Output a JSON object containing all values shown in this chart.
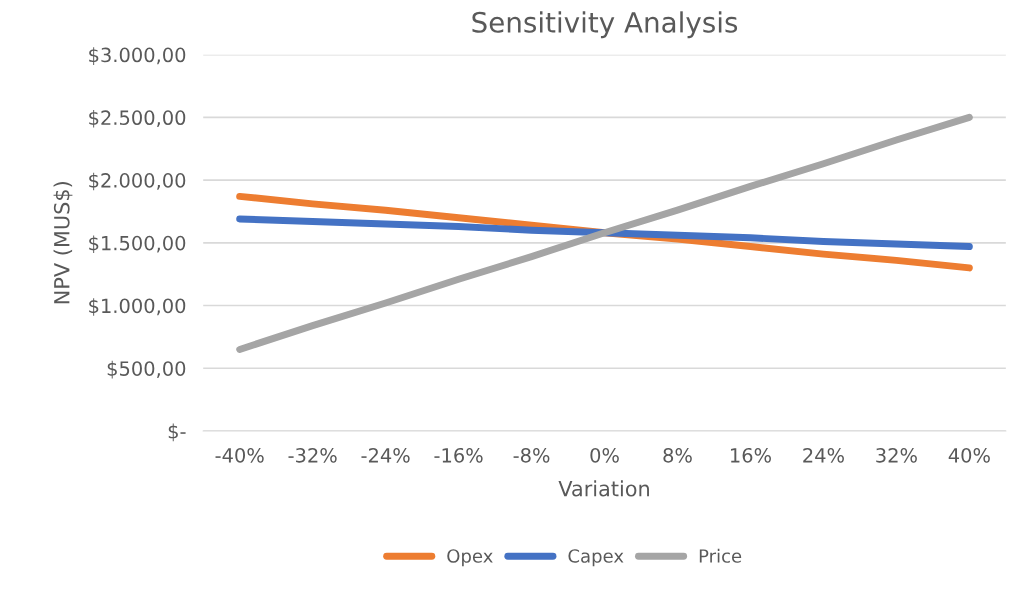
{
  "chart_data": {
    "type": "line",
    "title": "Sensitivity Analysis",
    "xlabel": "Variation",
    "ylabel": "NPV (MUS$)",
    "categories": [
      "-40%",
      "-32%",
      "-24%",
      "-16%",
      "-8%",
      "0%",
      "8%",
      "16%",
      "24%",
      "32%",
      "40%"
    ],
    "series": [
      {
        "name": "Opex",
        "color": "#ed7d31",
        "values": [
          1870,
          1810,
          1760,
          1700,
          1640,
          1580,
          1530,
          1470,
          1410,
          1360,
          1300
        ]
      },
      {
        "name": "Capex",
        "color": "#4472c4",
        "values": [
          1690,
          1670,
          1650,
          1630,
          1600,
          1580,
          1560,
          1540,
          1510,
          1490,
          1470
        ]
      },
      {
        "name": "Price",
        "color": "#a5a5a5",
        "values": [
          650,
          840,
          1020,
          1210,
          1390,
          1580,
          1760,
          1950,
          2130,
          2320,
          2500
        ]
      }
    ],
    "ylim": [
      0,
      3000
    ],
    "yticks": [
      {
        "value": 0,
        "label": "$-"
      },
      {
        "value": 500,
        "label": "$500,00"
      },
      {
        "value": 1000,
        "label": "$1.000,00"
      },
      {
        "value": 1500,
        "label": "$1.500,00"
      },
      {
        "value": 2000,
        "label": "$2.000,00"
      },
      {
        "value": 2500,
        "label": "$2.500,00"
      },
      {
        "value": 3000,
        "label": "$3.000,00"
      }
    ],
    "grid": "y",
    "legend": "bottom",
    "marker": "none",
    "line_style": "solid"
  }
}
